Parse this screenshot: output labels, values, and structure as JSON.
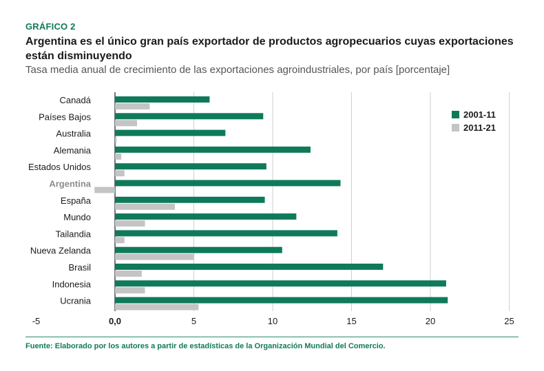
{
  "header": {
    "label": "GRÁFICO 2",
    "title": "Argentina es el único gran país exportador de productos agropecuarios cuyas exportaciones están disminuyendo",
    "subtitle": "Tasa media anual de crecimiento de las exportaciones agroindustriales, por país [porcentaje]"
  },
  "footer": {
    "source": "Fuente: Elaborado por los autores a partir de estadísticas de la Organización Mundial del Comercio."
  },
  "colors": {
    "series1": "#0f7a5a",
    "series2": "#c4c4c4",
    "highlight_label": "#8c8c8c"
  },
  "chart_data": {
    "type": "bar",
    "orientation": "horizontal",
    "title": "Tasa media anual de crecimiento de las exportaciones agroindustriales, por país [porcentaje]",
    "categories": [
      "Canadá",
      "Países Bajos",
      "Australia",
      "Alemania",
      "Estados Unidos",
      "Argentina",
      "España",
      "Mundo",
      "Tailandia",
      "Nueva Zelanda",
      "Brasil",
      "Indonesia",
      "Ucrania"
    ],
    "highlight_category": "Argentina",
    "series": [
      {
        "name": "2001-11",
        "values": [
          6.0,
          9.4,
          7.0,
          12.4,
          9.6,
          14.3,
          9.5,
          11.5,
          14.1,
          10.6,
          17.0,
          21.0,
          21.1
        ]
      },
      {
        "name": "2011-21",
        "values": [
          2.2,
          1.4,
          0.1,
          0.4,
          0.6,
          -1.3,
          3.8,
          1.9,
          0.6,
          5.0,
          1.7,
          1.9,
          5.3
        ]
      }
    ],
    "x_ticks": [
      -5,
      0,
      5,
      10,
      15,
      20,
      25
    ],
    "x_tick_labels": [
      "-5",
      "0,0",
      "5",
      "10",
      "15",
      "20",
      "25"
    ],
    "xlim": [
      -5,
      25
    ],
    "legend_position": "top-right",
    "grid": true
  }
}
